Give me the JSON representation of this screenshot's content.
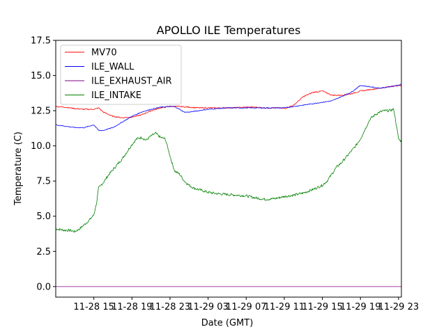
{
  "chart_data": {
    "type": "line",
    "title": "APOLLO ILE Temperatures",
    "xlabel": "Date (GMT)",
    "ylabel": "Temperature (C)",
    "x_unit": "hours since 2018-11-28 11:00 GMT",
    "xlim": [
      0,
      36.3
    ],
    "ylim": [
      -0.75,
      17.5
    ],
    "y_ticks": [
      0.0,
      2.5,
      5.0,
      7.5,
      10.0,
      12.5,
      15.0,
      17.5
    ],
    "y_tick_labels": [
      "0.0",
      "2.5",
      "5.0",
      "7.5",
      "10.0",
      "12.5",
      "15.0",
      "17.5"
    ],
    "x_ticks": [
      4,
      8,
      12,
      16,
      20,
      24,
      28,
      32,
      36
    ],
    "x_tick_labels": [
      "11-28 15",
      "11-28 19",
      "11-28 23",
      "11-29 03",
      "11-29 07",
      "11-29 11",
      "11-29 15",
      "11-29 19",
      "11-29 23"
    ],
    "legend_position": "upper-left",
    "series": [
      {
        "name": "MV70",
        "color": "#ff0000",
        "x": [
          0,
          1,
          2,
          3,
          4,
          4.5,
          5,
          6,
          7,
          8,
          9,
          10,
          11,
          12,
          13,
          14,
          15,
          16,
          17,
          18,
          19,
          20,
          21,
          22,
          23,
          23.5,
          24,
          25,
          26,
          27,
          28,
          29,
          30,
          31,
          32,
          33,
          34,
          35,
          36,
          36.3
        ],
        "y": [
          12.8,
          12.75,
          12.65,
          12.6,
          12.6,
          12.7,
          12.4,
          12.1,
          12.0,
          12.05,
          12.2,
          12.5,
          12.7,
          12.8,
          12.8,
          12.75,
          12.7,
          12.7,
          12.7,
          12.7,
          12.72,
          12.75,
          12.75,
          12.7,
          12.7,
          12.7,
          12.65,
          12.9,
          13.5,
          13.8,
          13.9,
          13.6,
          13.6,
          13.7,
          13.9,
          14.0,
          14.1,
          14.2,
          14.3,
          14.3
        ]
      },
      {
        "name": "ILE_WALL",
        "color": "#0000ff",
        "x": [
          0,
          1,
          2,
          3,
          3.5,
          4,
          4.5,
          5,
          6,
          7,
          8,
          9,
          10,
          11,
          12,
          12.5,
          13,
          13.5,
          14,
          15,
          16,
          17,
          18,
          19,
          20,
          21,
          22,
          23,
          24,
          25,
          26,
          27,
          28,
          29,
          30,
          31,
          32,
          33,
          34,
          35,
          36,
          36.3
        ],
        "y": [
          11.5,
          11.4,
          11.3,
          11.3,
          11.4,
          11.5,
          11.1,
          11.1,
          11.3,
          11.7,
          12.1,
          12.4,
          12.6,
          12.75,
          12.8,
          12.8,
          12.6,
          12.4,
          12.4,
          12.5,
          12.6,
          12.65,
          12.7,
          12.7,
          12.7,
          12.7,
          12.7,
          12.7,
          12.7,
          12.8,
          12.9,
          13.0,
          13.1,
          13.2,
          13.5,
          13.8,
          14.3,
          14.2,
          14.1,
          14.2,
          14.3,
          14.4
        ]
      },
      {
        "name": "ILE_EXHAUST_AIR",
        "color": "#800080",
        "x": [
          0,
          36.3
        ],
        "y": [
          0.0,
          0.0
        ]
      },
      {
        "name": "ILE_INTAKE",
        "color": "#008000",
        "x": [
          0,
          1,
          1.5,
          2,
          2.5,
          3,
          3.5,
          4,
          4.3,
          4.5,
          5,
          5.5,
          6,
          6.5,
          7,
          7.5,
          8,
          8.5,
          9,
          9.5,
          10,
          10.5,
          11,
          11.5,
          12,
          12.2,
          12.5,
          13,
          13.5,
          14,
          14.5,
          15,
          16,
          17,
          18,
          19,
          20,
          21,
          22,
          23,
          24,
          25,
          26,
          27,
          28,
          28.5,
          29,
          29.5,
          30,
          30.5,
          31,
          31.5,
          32,
          32.5,
          33,
          33.5,
          34,
          34.5,
          35,
          35.5,
          36,
          36.3
        ],
        "y": [
          4.1,
          4.0,
          4.0,
          3.9,
          4.1,
          4.4,
          4.7,
          5.1,
          6.0,
          7.0,
          7.4,
          7.9,
          8.3,
          8.7,
          9.1,
          9.6,
          10.1,
          10.5,
          10.6,
          10.4,
          10.7,
          10.9,
          10.6,
          10.5,
          9.3,
          8.8,
          8.2,
          8.0,
          7.5,
          7.2,
          7.0,
          6.9,
          6.7,
          6.6,
          6.55,
          6.5,
          6.45,
          6.3,
          6.2,
          6.25,
          6.4,
          6.5,
          6.65,
          6.9,
          7.2,
          7.5,
          8.0,
          8.5,
          8.8,
          9.2,
          9.6,
          10.0,
          10.5,
          11.2,
          11.9,
          12.2,
          12.4,
          12.5,
          12.5,
          12.6,
          10.5,
          10.3
        ]
      }
    ]
  }
}
